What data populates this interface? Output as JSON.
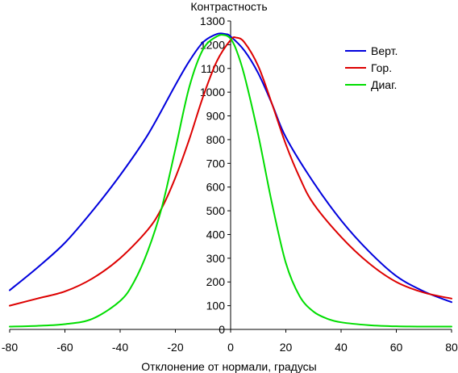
{
  "chart_data": {
    "type": "line",
    "ylabel": "Контрастность",
    "xlabel": "Отклонение от нормали, градусы",
    "xlim": [
      -80,
      80
    ],
    "ylim": [
      0,
      1300
    ],
    "x_ticks": [
      -80,
      -60,
      -40,
      -20,
      0,
      20,
      40,
      60,
      80
    ],
    "y_ticks": [
      0,
      100,
      200,
      300,
      400,
      500,
      600,
      700,
      800,
      900,
      1000,
      1100,
      1200,
      1300
    ],
    "legend_position": "top-right",
    "grid": false,
    "series": [
      {
        "name": "Верт.",
        "color": "#0000dd",
        "x": [
          -80,
          -70,
          -60,
          -50,
          -40,
          -30,
          -20,
          -15,
          -10,
          -5,
          -2,
          0,
          5,
          10,
          15,
          20,
          30,
          40,
          50,
          60,
          70,
          80
        ],
        "y": [
          165,
          260,
          365,
          500,
          650,
          820,
          1030,
          1130,
          1210,
          1245,
          1245,
          1235,
          1175,
          1080,
          950,
          810,
          620,
          460,
          330,
          225,
          160,
          115
        ]
      },
      {
        "name": "Гор.",
        "color": "#dd0000",
        "x": [
          -80,
          -70,
          -60,
          -50,
          -40,
          -30,
          -25,
          -20,
          -15,
          -10,
          -5,
          0,
          2,
          5,
          10,
          15,
          20,
          25,
          30,
          40,
          50,
          60,
          70,
          80
        ],
        "y": [
          100,
          130,
          160,
          215,
          300,
          420,
          510,
          640,
          800,
          980,
          1130,
          1220,
          1230,
          1210,
          1110,
          950,
          780,
          640,
          530,
          390,
          280,
          200,
          155,
          130
        ]
      },
      {
        "name": "Диаг.",
        "color": "#00dd00",
        "x": [
          -80,
          -70,
          -60,
          -50,
          -40,
          -35,
          -30,
          -25,
          -20,
          -15,
          -10,
          -5,
          -2,
          0,
          2,
          5,
          10,
          15,
          20,
          25,
          30,
          35,
          40,
          50,
          60,
          70,
          80
        ],
        "y": [
          12,
          15,
          22,
          45,
          120,
          200,
          330,
          510,
          760,
          1020,
          1180,
          1235,
          1240,
          1225,
          1180,
          1070,
          820,
          530,
          280,
          140,
          75,
          45,
          30,
          18,
          13,
          12,
          12
        ]
      }
    ]
  }
}
